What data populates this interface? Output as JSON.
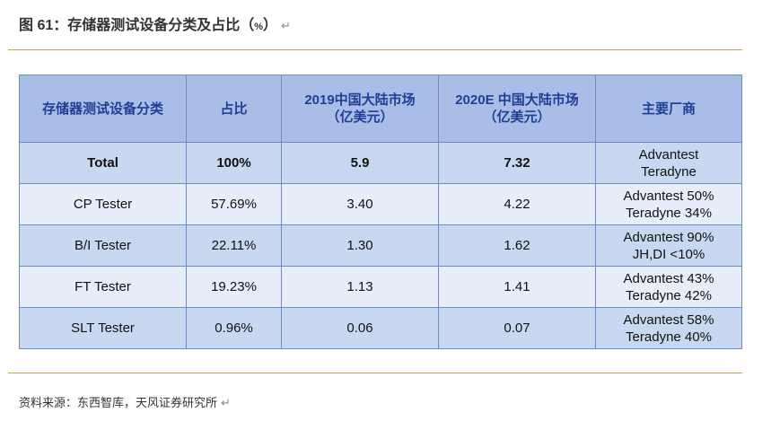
{
  "figure": {
    "title_main": "图 61：存储器测试设备分类及占比（",
    "title_pct": "%",
    "title_close": "）",
    "return_mark": "↵"
  },
  "table": {
    "headers": [
      {
        "lines": [
          "存储器测试设备分类"
        ]
      },
      {
        "lines": [
          "占比"
        ]
      },
      {
        "lines": [
          "2019中国大陆市场",
          "（亿美元）"
        ]
      },
      {
        "lines": [
          "2020E 中国大陆市场",
          "（亿美元）"
        ]
      },
      {
        "lines": [
          "主要厂商"
        ]
      }
    ],
    "rows": [
      {
        "category": "Total",
        "share": "100%",
        "m2019": "5.9",
        "m2020": "7.32",
        "vendors": [
          "Advantest",
          "Teradyne"
        ]
      },
      {
        "category": "CP Tester",
        "share": "57.69%",
        "m2019": "3.40",
        "m2020": "4.22",
        "vendors": [
          "Advantest 50%",
          "Teradyne 34%"
        ]
      },
      {
        "category": "B/I Tester",
        "share": "22.11%",
        "m2019": "1.30",
        "m2020": "1.62",
        "vendors": [
          "Advantest 90%",
          "JH,DI <10%"
        ]
      },
      {
        "category": "FT Tester",
        "share": "19.23%",
        "m2019": "1.13",
        "m2020": "1.41",
        "vendors": [
          "Advantest 43%",
          "Teradyne 42%"
        ]
      },
      {
        "category": "SLT Tester",
        "share": "0.96%",
        "m2019": "0.06",
        "m2020": "0.07",
        "vendors": [
          "Advantest 58%",
          "Teradyne 40%"
        ]
      }
    ]
  },
  "source": {
    "text": "资料来源：东西智库，天风证券研究所",
    "return_mark": "↵"
  }
}
